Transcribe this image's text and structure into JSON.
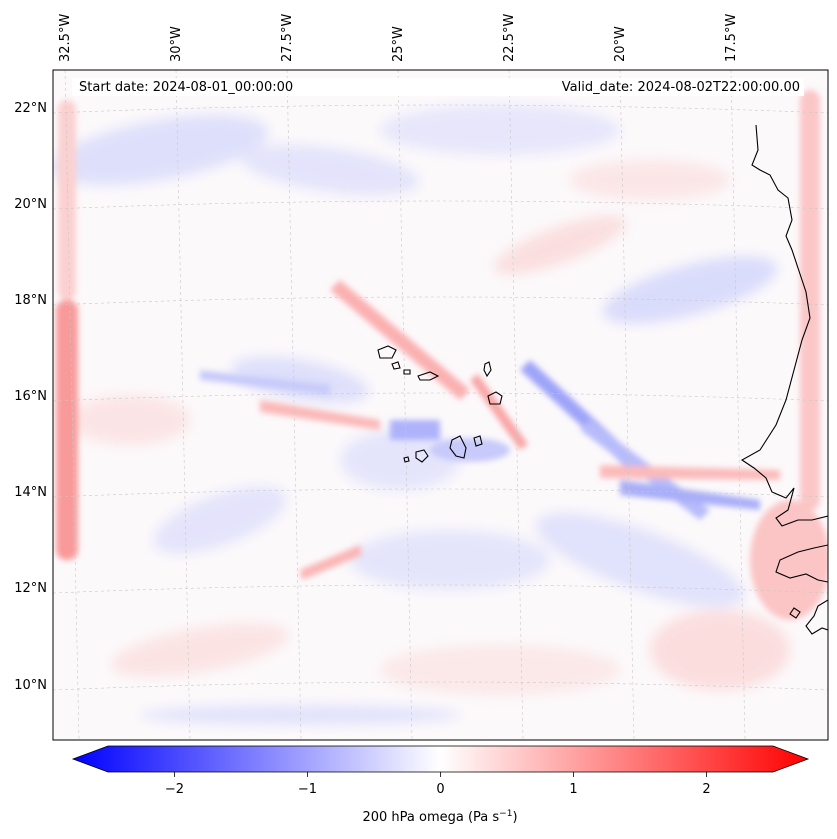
{
  "annotations": {
    "start_date": "Start date: 2024-08-01_00:00:00",
    "valid_date": "Valid_date: 2024-08-02T22:00:00.00"
  },
  "map": {
    "lon_labels": [
      "32.5°W",
      "30°W",
      "27.5°W",
      "25°W",
      "22.5°W",
      "20°W",
      "17.5°W"
    ],
    "lat_labels": [
      "22°N",
      "20°N",
      "18°N",
      "16°N",
      "14°N",
      "12°N",
      "10°N"
    ],
    "lon_range": [
      -33.0,
      -15.4
    ],
    "lat_range": [
      8.8,
      22.8
    ],
    "gridlines": true,
    "coastlines": true,
    "regions": [
      "Cabo Verde islands",
      "West African coast"
    ]
  },
  "colorbar": {
    "label": "200 hPa omega (Pa s",
    "label_sup": "−1",
    "label_end": ")",
    "ticks": [
      "−2",
      "−1",
      "0",
      "1",
      "2"
    ],
    "tick_values": [
      -2,
      -1,
      0,
      1,
      2
    ],
    "range": [
      -2.5,
      2.5
    ],
    "extend": "both",
    "colormap": "bwr",
    "low_color": "#0000ff",
    "mid_color": "#ffffff",
    "high_color": "#ff0000"
  }
}
